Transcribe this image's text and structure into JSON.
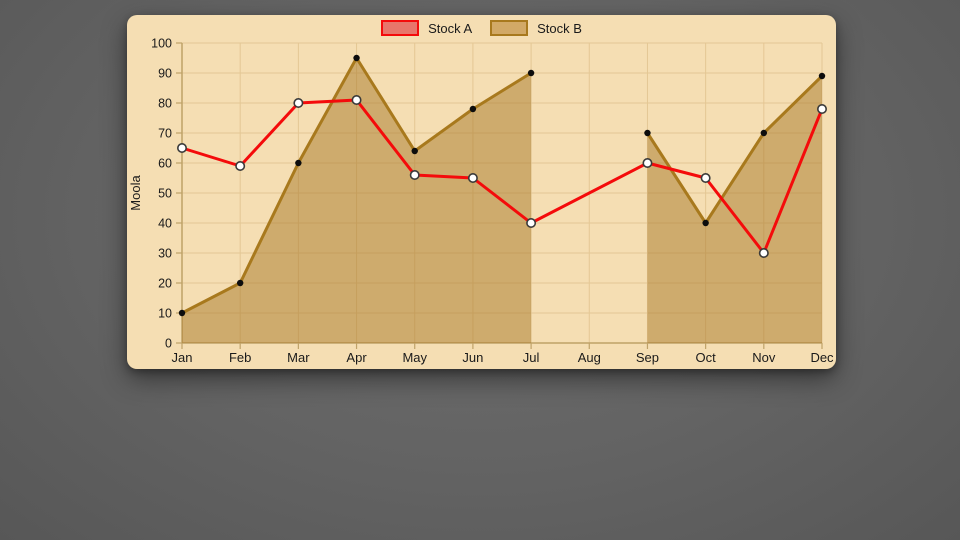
{
  "colors": {
    "page_bg": "#636363",
    "panel_bg": "#F5DEB3",
    "grid": "#E4C794",
    "axis": "#BFA268",
    "text": "#1A1A1A",
    "stock_a_line": "#F40B0B",
    "stock_a_swatch_fill": "#E8766B",
    "stock_b_line": "#A8791D",
    "stock_b_area": "rgba(168,120,40,0.5)",
    "stock_b_swatch_fill": "#D2A966",
    "marker_a_fill": "#FFFFFF",
    "marker_a_stroke": "#3A3A3A",
    "marker_b_fill": "#0D0D0D"
  },
  "chart_data": {
    "type": "line",
    "title": "",
    "ylabel": "Moola",
    "xlabel": "",
    "ylim": [
      0,
      100
    ],
    "yticks": [
      0,
      10,
      20,
      30,
      40,
      50,
      60,
      70,
      80,
      90,
      100
    ],
    "grid": true,
    "legend_position": "top",
    "categories": [
      "Jan",
      "Feb",
      "Mar",
      "Apr",
      "May",
      "Jun",
      "Jul",
      "Aug",
      "Sep",
      "Oct",
      "Nov",
      "Dec"
    ],
    "series": [
      {
        "name": "Stock A",
        "type": "line",
        "fill": false,
        "span_gaps": true,
        "point_style": "white-circle",
        "values": [
          65,
          59,
          80,
          81,
          56,
          55,
          40,
          null,
          60,
          55,
          30,
          78
        ]
      },
      {
        "name": "Stock B",
        "type": "area",
        "fill": true,
        "span_gaps": false,
        "point_style": "black-circle",
        "values": [
          10,
          20,
          60,
          95,
          64,
          78,
          90,
          null,
          70,
          40,
          70,
          89
        ]
      }
    ]
  }
}
